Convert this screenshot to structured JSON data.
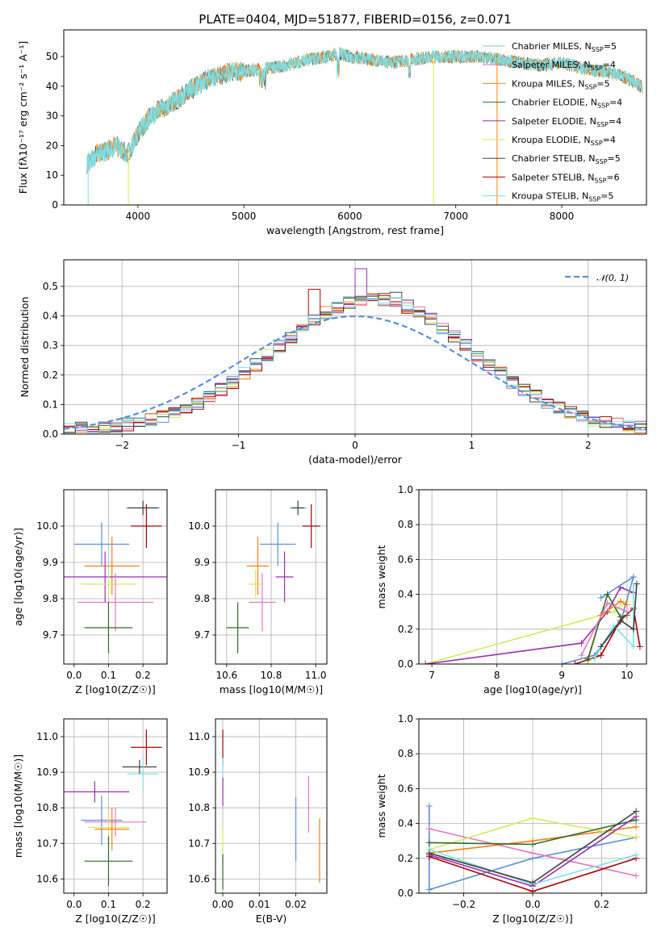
{
  "title": "PLATE=0404, MJD=51877, FIBERID=0156, z=0.071",
  "colors": {
    "chabrier_miles": "#7fc9b7",
    "salpeter_miles": "#e377c2",
    "kroupa_miles": "#ff7f0e",
    "chabrier_elodie": "#2c6b2c",
    "salpeter_elodie": "#9a2fb0",
    "kroupa_elodie": "#d6ea5b",
    "chabrier_stelib": "#404040",
    "salpeter_stelib": "#b00000",
    "kroupa_stelib": "#7fe0e8",
    "blue_gauss": "#5b8fd9"
  },
  "chart_data": [
    {
      "id": "spectrum",
      "type": "line",
      "xlabel": "wavelength [Angstrom, rest frame]",
      "ylabel": "Flux [fλ10⁻¹⁷ erg cm⁻² s⁻¹ A⁻¹]",
      "xlim": [
        3300,
        8800
      ],
      "ylim": [
        0,
        59
      ],
      "xticks": [
        4000,
        5000,
        6000,
        7000,
        8000
      ],
      "yticks": [
        0,
        10,
        20,
        30,
        40,
        50
      ],
      "grid": false,
      "legend_position": "top-right",
      "legend": [
        "Chabrier MILES, N_SSP=5",
        "Salpeter MILES, N_SSP=4",
        "Kroupa MILES, N_SSP=5",
        "Chabrier ELODIE, N_SSP=4",
        "Salpeter ELODIE, N_SSP=4",
        "Kroupa ELODIE, N_SSP=4",
        "Chabrier STELIB, N_SSP=5",
        "Salpeter STELIB, N_SSP=6",
        "Kroupa STELIB, N_SSP=5"
      ],
      "continuum": {
        "x": [
          3520,
          3600,
          3700,
          3800,
          3900,
          4000,
          4100,
          4200,
          4300,
          4400,
          4500,
          4600,
          4700,
          4800,
          4900,
          5000,
          5200,
          5400,
          5600,
          5800,
          5900,
          6000,
          6200,
          6400,
          6600,
          6800,
          7000,
          7200,
          7400,
          7600,
          7800,
          8000,
          8200,
          8400,
          8600,
          8750
        ],
        "y": [
          14,
          17,
          18,
          20,
          17,
          24,
          29,
          32,
          34,
          36,
          39,
          41,
          43,
          44,
          45,
          45,
          46,
          47,
          49,
          50,
          51,
          50,
          49,
          48,
          49,
          50,
          50,
          50,
          49,
          48,
          47,
          48,
          46,
          45,
          43,
          40
        ]
      }
    },
    {
      "id": "residuals",
      "type": "histogram",
      "xlabel": "(data-model)/error",
      "ylabel": "Normed distribution",
      "xlim": [
        -2.5,
        2.5
      ],
      "ylim": [
        0,
        0.59
      ],
      "xticks": [
        -2,
        -1,
        0,
        1,
        2
      ],
      "yticks": [
        0.0,
        0.1,
        0.2,
        0.3,
        0.4,
        0.5
      ],
      "grid": true,
      "legend": [
        "𝒩(0, 1)"
      ],
      "legend_position": "top-right",
      "bin_width": 0.1,
      "hist_mean_shift": 0.15,
      "hist_sigma": 0.85,
      "spike_bins": {
        "0.0": 0.56,
        "-0.4": 0.49,
        "0.3": 0.48
      }
    },
    {
      "id": "age_vs_Z",
      "type": "errorbar",
      "xlabel": "Z [log10(Z/Z☉)]",
      "ylabel": "age [log10(age/yr)]",
      "xlim": [
        -0.03,
        0.27
      ],
      "ylim": [
        9.62,
        10.1
      ],
      "xticks": [
        0.0,
        0.1,
        0.2
      ],
      "yticks": [
        9.7,
        9.8,
        9.9,
        10.0
      ],
      "grid": true,
      "points": [
        {
          "x": 0.2,
          "y": 10.05,
          "dx": 0.05,
          "dy": 0.02,
          "c": "kroupa_stelib"
        },
        {
          "x": 0.2,
          "y": 10.05,
          "dx": 0.045,
          "dy": 0.02,
          "c": "chabrier_stelib"
        },
        {
          "x": 0.21,
          "y": 10.0,
          "dx": 0.045,
          "dy": 0.06,
          "c": "salpeter_stelib"
        },
        {
          "x": 0.08,
          "y": 9.95,
          "dx": 0.08,
          "dy": 0.06,
          "c": "blue_gauss"
        },
        {
          "x": 0.11,
          "y": 9.89,
          "dx": 0.08,
          "dy": 0.08,
          "c": "kroupa_miles"
        },
        {
          "x": 0.09,
          "y": 9.86,
          "dx": 0.2,
          "dy": 0.07,
          "c": "salpeter_elodie"
        },
        {
          "x": 0.1,
          "y": 9.84,
          "dx": 0.08,
          "dy": 0.04,
          "c": "kroupa_elodie"
        },
        {
          "x": 0.12,
          "y": 9.79,
          "dx": 0.11,
          "dy": 0.08,
          "c": "salpeter_miles"
        },
        {
          "x": 0.1,
          "y": 9.72,
          "dx": 0.07,
          "dy": 0.07,
          "c": "chabrier_elodie"
        }
      ]
    },
    {
      "id": "age_vs_mass",
      "type": "errorbar",
      "xlabel": "mass [log10(M/M☉)]",
      "ylabel": "",
      "xlim": [
        10.55,
        11.05
      ],
      "ylim": [
        9.62,
        10.1
      ],
      "xticks": [
        10.6,
        10.8,
        11.0
      ],
      "yticks": [
        9.7,
        9.8,
        9.9,
        10.0
      ],
      "grid": true,
      "points": [
        {
          "x": 10.92,
          "y": 10.05,
          "dx": 0.04,
          "dy": 0.02,
          "c": "kroupa_stelib"
        },
        {
          "x": 10.92,
          "y": 10.05,
          "dx": 0.03,
          "dy": 0.02,
          "c": "chabrier_stelib"
        },
        {
          "x": 10.98,
          "y": 10.0,
          "dx": 0.04,
          "dy": 0.06,
          "c": "salpeter_stelib"
        },
        {
          "x": 10.83,
          "y": 9.95,
          "dx": 0.08,
          "dy": 0.06,
          "c": "blue_gauss"
        },
        {
          "x": 10.74,
          "y": 9.89,
          "dx": 0.05,
          "dy": 0.08,
          "c": "kroupa_miles"
        },
        {
          "x": 10.86,
          "y": 9.86,
          "dx": 0.04,
          "dy": 0.07,
          "c": "salpeter_elodie"
        },
        {
          "x": 10.73,
          "y": 9.84,
          "dx": 0.03,
          "dy": 0.04,
          "c": "kroupa_elodie"
        },
        {
          "x": 10.76,
          "y": 9.79,
          "dx": 0.06,
          "dy": 0.08,
          "c": "salpeter_miles"
        },
        {
          "x": 10.65,
          "y": 9.72,
          "dx": 0.05,
          "dy": 0.07,
          "c": "chabrier_elodie"
        }
      ]
    },
    {
      "id": "weight_vs_age",
      "type": "line",
      "xlabel": "age [log10(age/yr)]",
      "ylabel": "mass weight",
      "xlim": [
        6.8,
        10.3
      ],
      "ylim": [
        0,
        1.0
      ],
      "xticks": [
        7,
        8,
        9,
        10
      ],
      "yticks": [
        0.0,
        0.2,
        0.4,
        0.6,
        0.8,
        1.0
      ],
      "grid": true,
      "series": [
        {
          "c": "kroupa_elodie",
          "x": [
            6.9,
            9.8,
            10.0
          ],
          "y": [
            0.0,
            0.3,
            0.36
          ]
        },
        {
          "c": "salpeter_elodie",
          "x": [
            6.9,
            9.3,
            9.7,
            9.9,
            10.1
          ],
          "y": [
            0.0,
            0.12,
            0.3,
            0.44,
            0.41
          ]
        },
        {
          "c": "blue_gauss",
          "x": [
            9.0,
            9.5,
            9.9,
            10.1,
            9.6
          ],
          "y": [
            0.0,
            0.05,
            0.24,
            0.5,
            0.38
          ]
        },
        {
          "c": "kroupa_miles",
          "x": [
            9.4,
            9.6,
            9.9,
            10.0
          ],
          "y": [
            0.02,
            0.28,
            0.36,
            0.34
          ]
        },
        {
          "c": "salpeter_stelib",
          "x": [
            9.2,
            9.6,
            9.9,
            10.1,
            10.2
          ],
          "y": [
            0.0,
            0.05,
            0.25,
            0.32,
            0.1
          ]
        },
        {
          "c": "chabrier_elodie",
          "x": [
            9.4,
            9.7,
            9.9,
            10.0
          ],
          "y": [
            0.03,
            0.4,
            0.27,
            0.28
          ]
        },
        {
          "c": "kroupa_stelib",
          "x": [
            9.5,
            9.8,
            10.1,
            10.1
          ],
          "y": [
            0.03,
            0.22,
            0.1,
            0.45
          ]
        },
        {
          "c": "chabrier_stelib",
          "x": [
            9.6,
            9.9,
            10.1,
            10.15
          ],
          "y": [
            0.1,
            0.25,
            0.2,
            0.46
          ]
        },
        {
          "c": "salpeter_miles",
          "x": [
            9.3,
            9.7,
            10.0
          ],
          "y": [
            0.05,
            0.35,
            0.3
          ]
        }
      ]
    },
    {
      "id": "mass_vs_Z",
      "type": "errorbar",
      "xlabel": "Z [log10(Z/Z☉)]",
      "ylabel": "mass [log10(M/M☉)]",
      "xlim": [
        -0.03,
        0.27
      ],
      "ylim": [
        10.56,
        11.05
      ],
      "xticks": [
        0.0,
        0.1,
        0.2
      ],
      "yticks": [
        10.6,
        10.7,
        10.8,
        10.9,
        11.0
      ],
      "grid": true,
      "points": [
        {
          "x": 0.21,
          "y": 10.97,
          "dx": 0.045,
          "dy": 0.05,
          "c": "salpeter_stelib"
        },
        {
          "x": 0.19,
          "y": 10.915,
          "dx": 0.05,
          "dy": 0.02,
          "c": "chabrier_stelib"
        },
        {
          "x": 0.2,
          "y": 10.895,
          "dx": 0.045,
          "dy": 0.05,
          "c": "kroupa_stelib"
        },
        {
          "x": 0.06,
          "y": 10.845,
          "dx": 0.1,
          "dy": 0.03,
          "c": "salpeter_elodie"
        },
        {
          "x": 0.08,
          "y": 10.765,
          "dx": 0.06,
          "dy": 0.07,
          "c": "blue_gauss"
        },
        {
          "x": 0.12,
          "y": 10.76,
          "dx": 0.09,
          "dy": 0.04,
          "c": "salpeter_miles"
        },
        {
          "x": 0.1,
          "y": 10.745,
          "dx": 0.06,
          "dy": 0.04,
          "c": "kroupa_elodie"
        },
        {
          "x": 0.11,
          "y": 10.74,
          "dx": 0.05,
          "dy": 0.06,
          "c": "kroupa_miles"
        },
        {
          "x": 0.1,
          "y": 10.65,
          "dx": 0.07,
          "dy": 0.07,
          "c": "chabrier_elodie"
        }
      ]
    },
    {
      "id": "mass_vs_ebv",
      "type": "errorbar",
      "xlabel": "E(B-V)",
      "ylabel": "",
      "xlim": [
        -0.002,
        0.0285
      ],
      "ylim": [
        10.56,
        11.05
      ],
      "xticks": [
        0.0,
        0.01,
        0.02
      ],
      "yticks": [
        10.6,
        10.7,
        10.8,
        10.9,
        11.0
      ],
      "grid": true,
      "points": [
        {
          "x": 0.0,
          "y": 10.97,
          "dx": 0.0,
          "dy": 0.05,
          "c": "salpeter_stelib"
        },
        {
          "x": 0.0,
          "y": 10.89,
          "dx": 0.0,
          "dy": 0.05,
          "c": "kroupa_stelib"
        },
        {
          "x": 0.0,
          "y": 10.845,
          "dx": 0.0,
          "dy": 0.04,
          "c": "salpeter_elodie"
        },
        {
          "x": 0.0,
          "y": 10.7,
          "dx": 0.0,
          "dy": 0.05,
          "c": "kroupa_elodie"
        },
        {
          "x": 0.0,
          "y": 10.62,
          "dx": 0.0,
          "dy": 0.05,
          "c": "chabrier_elodie"
        },
        {
          "x": 0.02,
          "y": 10.74,
          "dx": 0.0,
          "dy": 0.09,
          "c": "blue_gauss"
        },
        {
          "x": 0.0235,
          "y": 10.81,
          "dx": 0.0,
          "dy": 0.08,
          "c": "salpeter_miles"
        },
        {
          "x": 0.0265,
          "y": 10.68,
          "dx": 0.0,
          "dy": 0.09,
          "c": "kroupa_miles"
        }
      ]
    },
    {
      "id": "weight_vs_Z",
      "type": "line",
      "xlabel": "Z [log10(Z/Z☉)]",
      "ylabel": "mass weight",
      "xlim": [
        -0.33,
        0.33
      ],
      "ylim": [
        0,
        1.0
      ],
      "xticks": [
        -0.2,
        0.0,
        0.2
      ],
      "yticks": [
        0.0,
        0.2,
        0.4,
        0.6,
        0.8,
        1.0
      ],
      "grid": true,
      "series": [
        {
          "c": "blue_gauss",
          "x": [
            -0.3,
            0.0,
            0.3
          ],
          "y": [
            0.02,
            0.2,
            0.32
          ]
        },
        {
          "c": "blue_gauss",
          "x": [
            -0.3,
            -0.3
          ],
          "y": [
            0.02,
            0.5
          ]
        },
        {
          "c": "salpeter_miles",
          "x": [
            -0.3,
            0.0,
            0.3
          ],
          "y": [
            0.37,
            0.23,
            0.1
          ]
        },
        {
          "c": "kroupa_miles",
          "x": [
            -0.3,
            0.0,
            0.3
          ],
          "y": [
            0.23,
            0.3,
            0.38
          ]
        },
        {
          "c": "kroupa_elodie",
          "x": [
            -0.3,
            0.0,
            0.3
          ],
          "y": [
            0.25,
            0.43,
            0.32
          ]
        },
        {
          "c": "chabrier_elodie",
          "x": [
            -0.3,
            0.0,
            0.3
          ],
          "y": [
            0.29,
            0.28,
            0.42
          ]
        },
        {
          "c": "salpeter_elodie",
          "x": [
            -0.3,
            0.0,
            0.3
          ],
          "y": [
            0.22,
            0.04,
            0.44
          ]
        },
        {
          "c": "salpeter_stelib",
          "x": [
            -0.3,
            0.0,
            0.3
          ],
          "y": [
            0.21,
            0.01,
            0.2
          ]
        },
        {
          "c": "kroupa_stelib",
          "x": [
            -0.3,
            0.0,
            0.3
          ],
          "y": [
            0.25,
            0.05,
            0.22
          ]
        },
        {
          "c": "chabrier_stelib",
          "x": [
            -0.3,
            0.0,
            0.3
          ],
          "y": [
            0.23,
            0.06,
            0.47
          ]
        }
      ]
    }
  ]
}
